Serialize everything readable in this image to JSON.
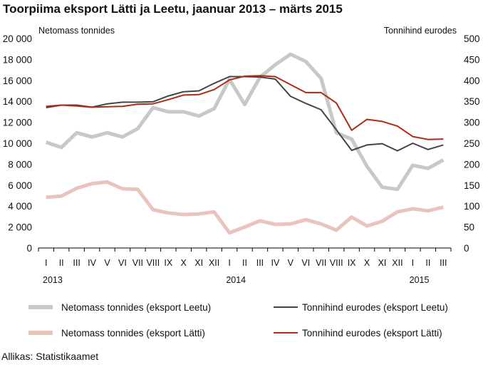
{
  "chart_data": {
    "type": "line",
    "title": "Toorpiima eksport Lätti ja Leetu,  jaanuar 2013 – märts 2015",
    "left_axis_label": "Netomass tonnides",
    "right_axis_label": "Tonnihind eurodes",
    "left_axis": {
      "min": 0,
      "max": 20000,
      "step": 2000,
      "tick_labels": [
        "0",
        "2 000",
        "4 000",
        "6 000",
        "8 000",
        "10 000",
        "12 000",
        "14 000",
        "16 000",
        "18 000",
        "20 000"
      ]
    },
    "right_axis": {
      "min": 0,
      "max": 500,
      "step": 50,
      "tick_labels": [
        "0",
        "50",
        "100",
        "150",
        "200",
        "250",
        "300",
        "350",
        "400",
        "450",
        "500"
      ]
    },
    "categories": [
      "I",
      "II",
      "III",
      "IV",
      "V",
      "VI",
      "VII",
      "VIII",
      "IX",
      "X",
      "XI",
      "XII",
      "I",
      "II",
      "III",
      "IV",
      "V",
      "VI",
      "VII",
      "VIII",
      "IX",
      "X",
      "XI",
      "XII",
      "I",
      "II",
      "III"
    ],
    "year_labels": [
      {
        "label": "2013",
        "index": 0
      },
      {
        "label": "2014",
        "index": 12
      },
      {
        "label": "2015",
        "index": 24
      }
    ],
    "grid": false,
    "legend_position": "bottom",
    "series": [
      {
        "name": "Netomass tonnides (eksport Leetu)",
        "axis": "left",
        "color": "#c8c8c8",
        "style": "thick",
        "values": [
          10100,
          9600,
          11000,
          10600,
          11000,
          10600,
          11400,
          13400,
          13000,
          13000,
          12600,
          13300,
          16100,
          13700,
          16300,
          17500,
          18500,
          17800,
          16200,
          11000,
          10400,
          7800,
          5800,
          5600,
          7900,
          7600,
          8400
        ]
      },
      {
        "name": "Netomass tonnides (eksport Lätti)",
        "axis": "left",
        "color": "#e8c4bc",
        "style": "thick",
        "values": [
          4850,
          4950,
          5700,
          6150,
          6300,
          5650,
          5600,
          3650,
          3350,
          3200,
          3250,
          3450,
          1450,
          2000,
          2600,
          2250,
          2300,
          2700,
          2300,
          1700,
          2950,
          2100,
          2550,
          3450,
          3750,
          3550,
          3900
        ]
      },
      {
        "name": "Tonnihind eurodes (eksport Leetu)",
        "axis": "right",
        "color": "#444444",
        "style": "thin",
        "values": [
          335,
          341,
          341,
          336,
          344,
          348,
          348,
          349,
          363,
          373,
          375,
          393,
          409,
          409,
          408,
          403,
          362,
          345,
          330,
          282,
          233,
          246,
          249,
          232,
          250,
          235,
          246
        ]
      },
      {
        "name": "Tonnihind eurodes (eksport Lätti)",
        "axis": "right",
        "color": "#b02a1a",
        "style": "thin",
        "values": [
          338,
          341,
          339,
          336,
          337,
          338,
          343,
          344,
          354,
          365,
          366,
          378,
          401,
          410,
          411,
          409,
          390,
          371,
          371,
          346,
          281,
          307,
          302,
          291,
          266,
          259,
          260
        ]
      }
    ]
  },
  "source": "Allikas: Statistikaamet"
}
